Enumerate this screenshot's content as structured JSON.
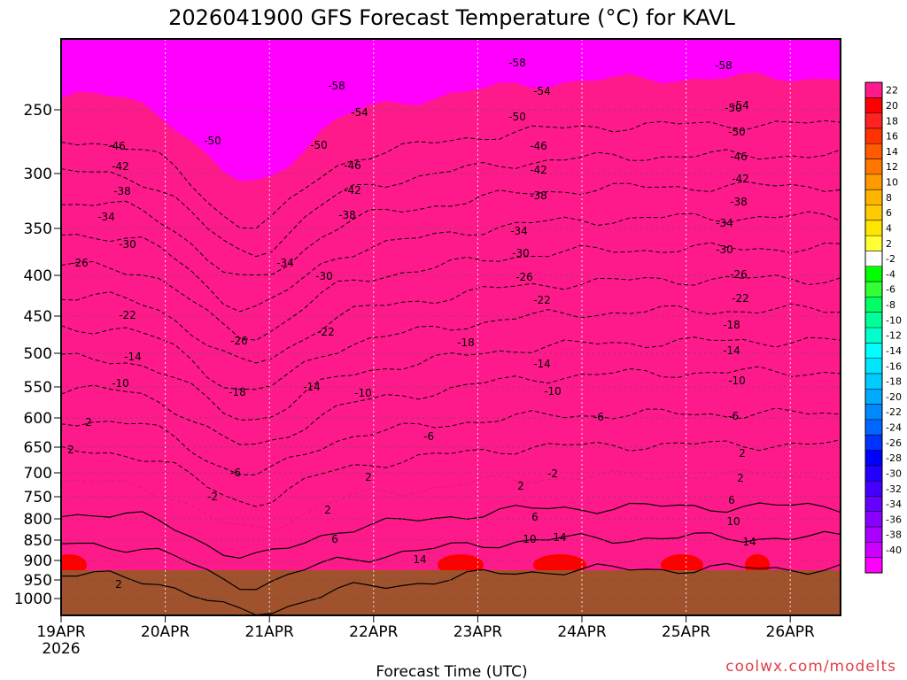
{
  "chart_data": {
    "type": "heatmap",
    "title": "2026041900 GFS Forecast Temperature (°C) for KAVL",
    "xlabel": "Forecast Time (UTC)",
    "ylabel": "",
    "x_ticks": [
      "19APR",
      "20APR",
      "21APR",
      "22APR",
      "23APR",
      "24APR",
      "25APR",
      "26APR"
    ],
    "x_tick_year": "2026",
    "y_ticks": [
      "250",
      "300",
      "350",
      "400",
      "450",
      "500",
      "550",
      "600",
      "650",
      "700",
      "750",
      "800",
      "850",
      "900",
      "950",
      "1000"
    ],
    "y_axis": "pressure (hPa), log scale, inverted",
    "ylim": [
      1000,
      200
    ],
    "xlim_hours": [
      0,
      180
    ],
    "grid": true,
    "colorbar": {
      "placement": "right",
      "labels": [
        "22",
        "20",
        "18",
        "16",
        "14",
        "12",
        "10",
        "8",
        "6",
        "4",
        "2",
        "-2",
        "-4",
        "-6",
        "-8",
        "-10",
        "-12",
        "-14",
        "-16",
        "-18",
        "-20",
        "-22",
        "-24",
        "-26",
        "-28",
        "-30",
        "-32",
        "-34",
        "-36",
        "-38",
        "-40"
      ],
      "colors": [
        "#ff1a8c",
        "#ff0000",
        "#ff2222",
        "#ff3300",
        "#ff5a00",
        "#ff7700",
        "#ff9900",
        "#ffb400",
        "#ffcc00",
        "#ffe600",
        "#ffff33",
        "#ffffff",
        "#00ff00",
        "#33ff33",
        "#00ff66",
        "#00ff99",
        "#00ffcc",
        "#00ffff",
        "#00e6ff",
        "#00ccff",
        "#00aaff",
        "#0088ff",
        "#0066ff",
        "#0033ff",
        "#0000ff",
        "#2200ff",
        "#4400ff",
        "#6600ff",
        "#8800ff",
        "#aa00ff",
        "#cc00ff",
        "#ff00ff"
      ]
    },
    "contour_labels": [
      "-58",
      "-58",
      "-58",
      "-54",
      "-54",
      "-54",
      "-50",
      "-50",
      "-50",
      "-50",
      "-50",
      "-46",
      "-46",
      "-46",
      "-46",
      "-42",
      "-42",
      "-42",
      "-42",
      "-38",
      "-38",
      "-38",
      "-38",
      "-34",
      "-34",
      "-34",
      "-34",
      "-30",
      "-30",
      "-30",
      "-30",
      "-26",
      "-26",
      "-26",
      "-26",
      "-22",
      "-22",
      "-22",
      "-22",
      "-18",
      "-18",
      "-18",
      "-14",
      "-14",
      "-14",
      "-14",
      "-10",
      "-10",
      "-10",
      "-10",
      "-6",
      "-6",
      "-6",
      "-6",
      "-2",
      "-2",
      "2",
      "2",
      "2",
      "2",
      "2",
      "2",
      "2",
      "6",
      "6",
      "6",
      "10",
      "10",
      "14",
      "14",
      "14",
      "2"
    ],
    "surface_color": "#a0522d"
  },
  "credit": "coolwx.com/modelts"
}
